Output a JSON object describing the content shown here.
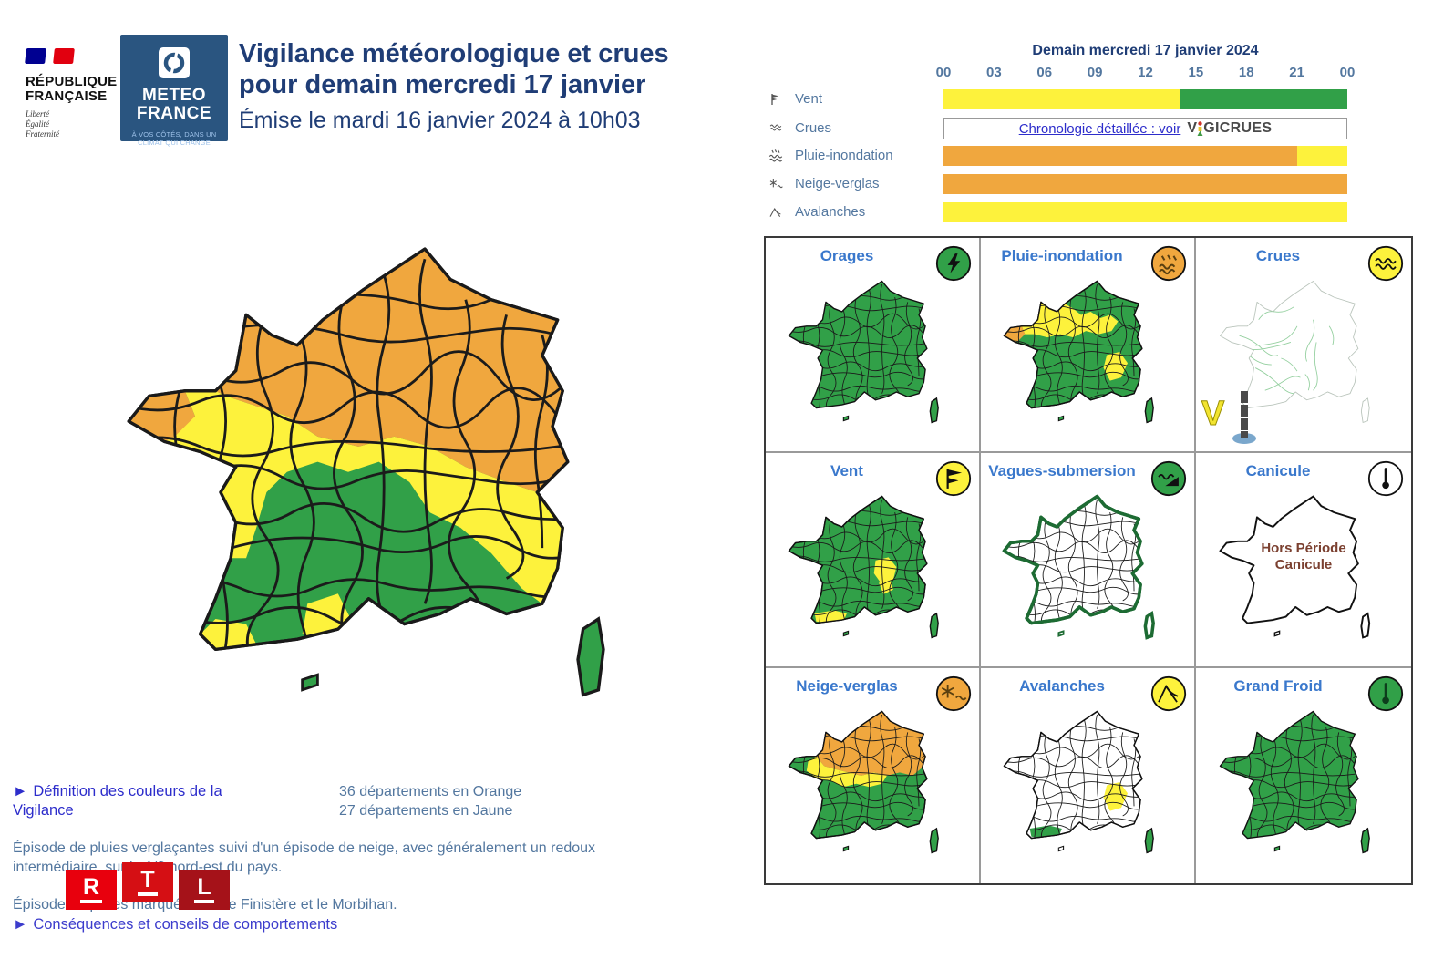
{
  "colors": {
    "green": "#31a048",
    "yellow": "#fdf23c",
    "orange": "#f0a73e",
    "white": "#ffffff",
    "navy": "#1f3d76",
    "steel_blue": "#53779f",
    "grid_label_blue": "#3a78cc",
    "link_blue": "#2d2dcb",
    "meteo_france_blue": "#2a5580",
    "flag_blue": "#000091",
    "flag_red": "#e1000f",
    "rtl_red_1": "#e8000d",
    "rtl_red_2": "#d50f14",
    "rtl_red_3": "#a51219"
  },
  "header": {
    "republique": {
      "name1": "RÉPUBLIQUE",
      "name2": "FRANÇAISE",
      "motto1": "Liberté",
      "motto2": "Égalité",
      "motto3": "Fraternité"
    },
    "meteo": {
      "name1": "METEO",
      "name2": "FRANCE",
      "tag1": "À VOS CÔTÉS, DANS UN",
      "tag2": "CLIMAT QUI CHANGE"
    },
    "title1": "Vigilance météorologique et crues",
    "title2": "pour demain mercredi 17 janvier",
    "subtitle": "Émise le mardi 16 janvier 2024 à 10h03"
  },
  "icons": {
    "link_arrow": "►"
  },
  "chart_data": {
    "type": "bar",
    "title": "Demain mercredi 17 janvier 2024",
    "x": [
      "00",
      "03",
      "06",
      "09",
      "12",
      "15",
      "18",
      "21",
      "00"
    ],
    "series": [
      {
        "name": "Vent",
        "segments": [
          {
            "color": "#fdf23c",
            "from_h": 0,
            "to_h": 14
          },
          {
            "color": "#31a048",
            "from_h": 14,
            "to_h": 24
          }
        ]
      },
      {
        "name": "Pluie-inondation",
        "segments": [
          {
            "color": "#f0a73e",
            "from_h": 0,
            "to_h": 21
          },
          {
            "color": "#fdf23c",
            "from_h": 21,
            "to_h": 24
          }
        ]
      },
      {
        "name": "Neige-verglas",
        "segments": [
          {
            "color": "#f0a73e",
            "from_h": 0,
            "to_h": 24
          }
        ]
      },
      {
        "name": "Avalanches",
        "segments": [
          {
            "color": "#fdf23c",
            "from_h": 0,
            "to_h": 24
          }
        ]
      }
    ]
  },
  "timeline": {
    "title": "Demain mercredi 17 janvier 2024",
    "hours": [
      "00",
      "03",
      "06",
      "09",
      "12",
      "15",
      "18",
      "21",
      "00"
    ],
    "rows": [
      {
        "label": "Vent",
        "segments": [
          {
            "color": "#fdf23c",
            "width_pct": 58.5
          },
          {
            "color": "#31a048",
            "width_pct": 41.5
          }
        ]
      },
      {
        "label": "Crues",
        "link": "Chronologie détaillée : voir",
        "brand_v": "V",
        "brand_rest": "GICRUES"
      },
      {
        "label": "Pluie-inondation",
        "segments": [
          {
            "color": "#f0a73e",
            "width_pct": 87.5
          },
          {
            "color": "#fdf23c",
            "width_pct": 12.5
          }
        ]
      },
      {
        "label": "Neige-verglas",
        "segments": [
          {
            "color": "#f0a73e",
            "width_pct": 100
          }
        ]
      },
      {
        "label": "Avalanches",
        "segments": [
          {
            "color": "#fdf23c",
            "width_pct": 100
          }
        ]
      }
    ]
  },
  "grid": {
    "cells": [
      {
        "label": "Orages",
        "icon_bg": "#31a048"
      },
      {
        "label": "Pluie-inondation",
        "icon_bg": "#f0a73e"
      },
      {
        "label": "Crues",
        "icon_bg": "#fdf23c",
        "vigicrues_v": "V"
      },
      {
        "label": "Vent",
        "icon_bg": "#fdf23c"
      },
      {
        "label": "Vagues-submersion",
        "icon_bg": "#31a048"
      },
      {
        "label": "Canicule",
        "icon_bg": "#ffffff",
        "overlay1": "Hors Période",
        "overlay2": "Canicule"
      },
      {
        "label": "Neige-verglas",
        "icon_bg": "#f0a73e"
      },
      {
        "label": "Avalanches",
        "icon_bg": "#fdf23c"
      },
      {
        "label": "Grand Froid",
        "icon_bg": "#31a048"
      }
    ]
  },
  "footer": {
    "link_definition": "Définition des couleurs de la Vigilance",
    "count_orange": "36 départements en Orange",
    "count_jaune": "27 départements en Jaune",
    "paragraph1": "Épisode de pluies verglaçantes suivi d'un épisode de neige, avec généralement un redoux intermédiaire, sur le 1/3 nord-est du pays.",
    "paragraph2": "Épisode de pluies marquées sur le Finistère et le Morbihan.",
    "link_consequences": "Conséquences et conseils de comportements",
    "rtl_letters": [
      "R",
      "T",
      "L"
    ]
  }
}
